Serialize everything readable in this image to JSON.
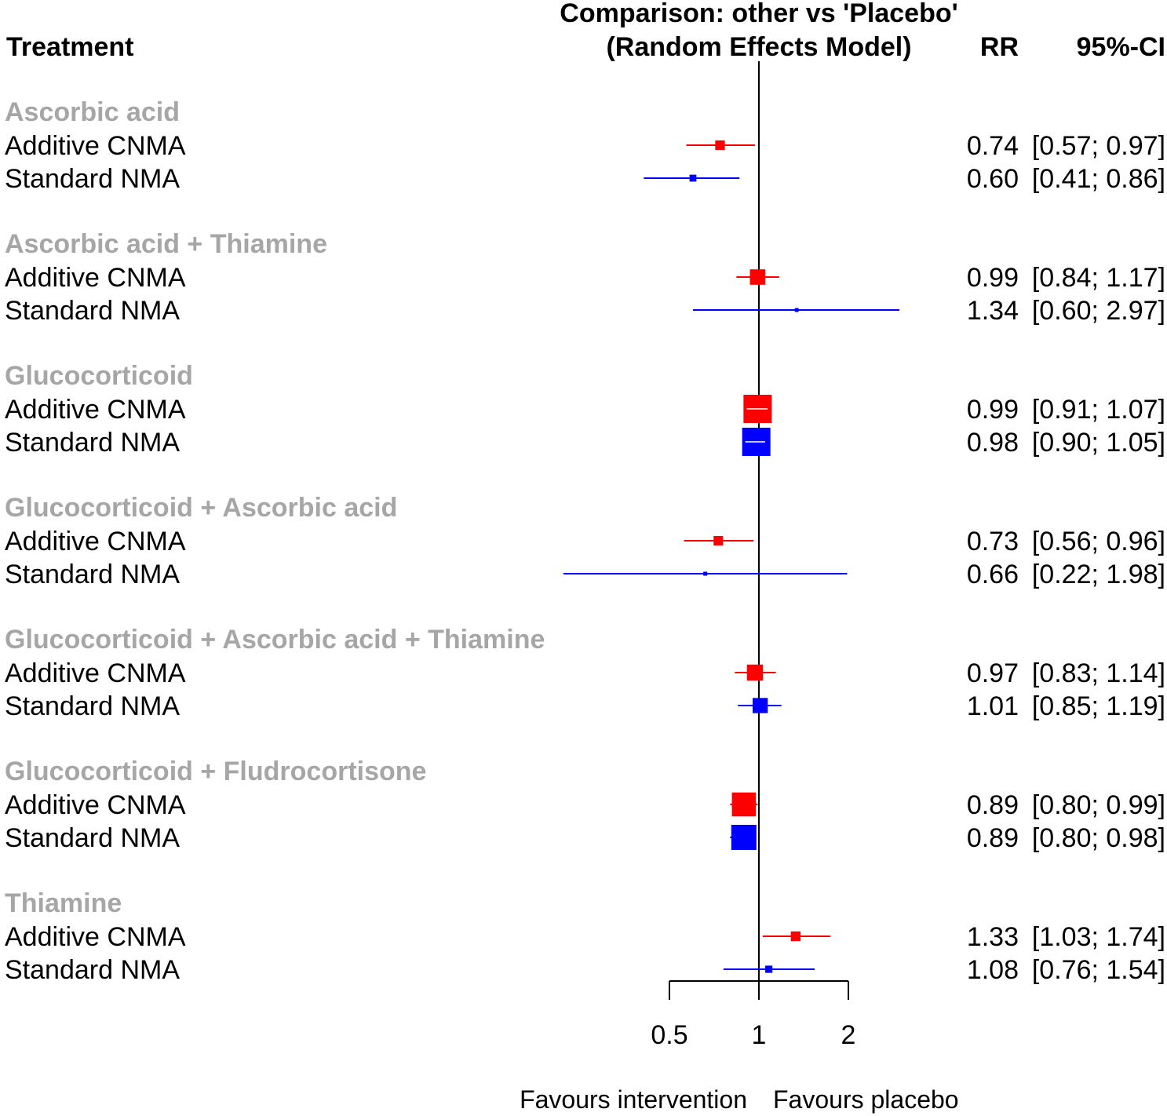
{
  "chart_data": {
    "type": "forest",
    "title": "Comparison: other vs 'Placebo'",
    "subtitle": "(Random Effects Model)",
    "columns": {
      "treatment": "Treatment",
      "effect": "RR",
      "ci": "95%-CI"
    },
    "x_axis": {
      "scale": "log",
      "ticks": [
        "0.5",
        "1",
        "2"
      ],
      "tick_values": [
        0.5,
        1,
        2
      ],
      "reference_line": 1
    },
    "favours": {
      "left": "Favours intervention",
      "right": "Favours placebo"
    },
    "method_colors": {
      "Additive CNMA": "#ff0000",
      "Standard NMA": "#0000ff"
    },
    "group_label_color": "#a6a6a6",
    "groups": [
      {
        "name": "Ascorbic acid",
        "rows": [
          {
            "method": "Additive CNMA",
            "rr": 0.74,
            "lower": 0.57,
            "upper": 0.97,
            "rr_text": "0.74",
            "ci_text": "[0.57; 0.97]"
          },
          {
            "method": "Standard NMA",
            "rr": 0.6,
            "lower": 0.41,
            "upper": 0.86,
            "rr_text": "0.60",
            "ci_text": "[0.41; 0.86]"
          }
        ]
      },
      {
        "name": "Ascorbic acid + Thiamine",
        "rows": [
          {
            "method": "Additive CNMA",
            "rr": 0.99,
            "lower": 0.84,
            "upper": 1.17,
            "rr_text": "0.99",
            "ci_text": "[0.84; 1.17]"
          },
          {
            "method": "Standard NMA",
            "rr": 1.34,
            "lower": 0.6,
            "upper": 2.97,
            "rr_text": "1.34",
            "ci_text": "[0.60; 2.97]"
          }
        ]
      },
      {
        "name": "Glucocorticoid",
        "rows": [
          {
            "method": "Additive CNMA",
            "rr": 0.99,
            "lower": 0.91,
            "upper": 1.07,
            "rr_text": "0.99",
            "ci_text": "[0.91; 1.07]"
          },
          {
            "method": "Standard NMA",
            "rr": 0.98,
            "lower": 0.9,
            "upper": 1.05,
            "rr_text": "0.98",
            "ci_text": "[0.90; 1.05]"
          }
        ]
      },
      {
        "name": "Glucocorticoid + Ascorbic acid",
        "rows": [
          {
            "method": "Additive CNMA",
            "rr": 0.73,
            "lower": 0.56,
            "upper": 0.96,
            "rr_text": "0.73",
            "ci_text": "[0.56; 0.96]"
          },
          {
            "method": "Standard NMA",
            "rr": 0.66,
            "lower": 0.22,
            "upper": 1.98,
            "rr_text": "0.66",
            "ci_text": "[0.22; 1.98]"
          }
        ]
      },
      {
        "name": "Glucocorticoid + Ascorbic acid + Thiamine",
        "rows": [
          {
            "method": "Additive CNMA",
            "rr": 0.97,
            "lower": 0.83,
            "upper": 1.14,
            "rr_text": "0.97",
            "ci_text": "[0.83; 1.14]"
          },
          {
            "method": "Standard NMA",
            "rr": 1.01,
            "lower": 0.85,
            "upper": 1.19,
            "rr_text": "1.01",
            "ci_text": "[0.85; 1.19]"
          }
        ]
      },
      {
        "name": "Glucocorticoid + Fludrocortisone",
        "rows": [
          {
            "method": "Additive CNMA",
            "rr": 0.89,
            "lower": 0.8,
            "upper": 0.99,
            "rr_text": "0.89",
            "ci_text": "[0.80; 0.99]"
          },
          {
            "method": "Standard NMA",
            "rr": 0.89,
            "lower": 0.8,
            "upper": 0.98,
            "rr_text": "0.89",
            "ci_text": "[0.80; 0.98]"
          }
        ]
      },
      {
        "name": "Thiamine",
        "rows": [
          {
            "method": "Additive CNMA",
            "rr": 1.33,
            "lower": 1.03,
            "upper": 1.74,
            "rr_text": "1.33",
            "ci_text": "[1.03; 1.74]"
          },
          {
            "method": "Standard NMA",
            "rr": 1.08,
            "lower": 0.76,
            "upper": 1.54,
            "rr_text": "1.08",
            "ci_text": "[0.76; 1.54]"
          }
        ]
      }
    ]
  }
}
